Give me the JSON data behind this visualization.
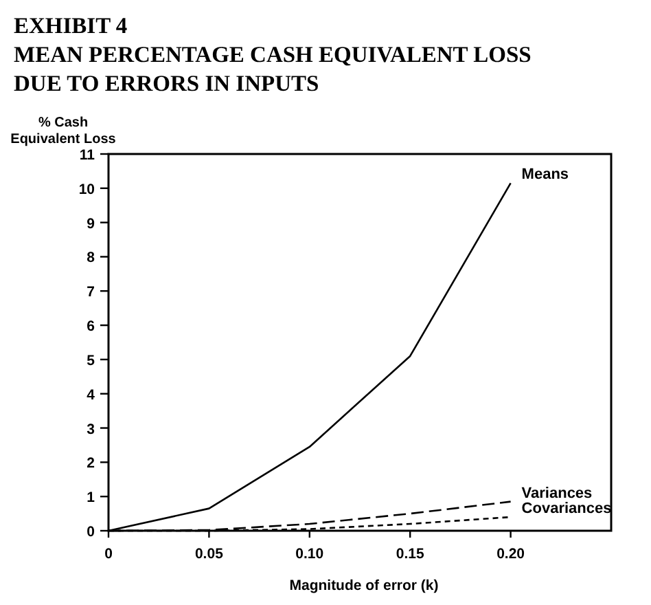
{
  "chart_data": {
    "type": "line",
    "title": "EXHIBIT 4\nMEAN PERCENTAGE CASH EQUIVALENT LOSS\nDUE TO ERRORS IN INPUTS",
    "xlabel": "Magnitude of error (k)",
    "ylabel": "% Cash\nEquivalent Loss",
    "x": [
      0,
      0.05,
      0.1,
      0.15,
      0.2
    ],
    "xlim": [
      0,
      0.25
    ],
    "xticks": [
      {
        "value": 0,
        "label": "0"
      },
      {
        "value": 0.05,
        "label": "0.05"
      },
      {
        "value": 0.1,
        "label": "0.10"
      },
      {
        "value": 0.15,
        "label": "0.15"
      },
      {
        "value": 0.2,
        "label": "0.20"
      }
    ],
    "ylim": [
      0,
      11
    ],
    "yticks": [
      0,
      1,
      2,
      3,
      4,
      5,
      6,
      7,
      8,
      9,
      10,
      11
    ],
    "grid": false,
    "legend": false,
    "series": [
      {
        "name": "Means",
        "color": "#000000",
        "line_style": "solid",
        "values": [
          0,
          0.65,
          2.45,
          5.1,
          10.15
        ]
      },
      {
        "name": "Variances",
        "color": "#000000",
        "line_style": "dashed",
        "values": [
          0,
          0.02,
          0.2,
          0.5,
          0.85
        ]
      },
      {
        "name": "Covariances",
        "color": "#000000",
        "line_style": "dotted",
        "values": [
          0,
          0,
          0.05,
          0.2,
          0.4
        ]
      }
    ]
  }
}
